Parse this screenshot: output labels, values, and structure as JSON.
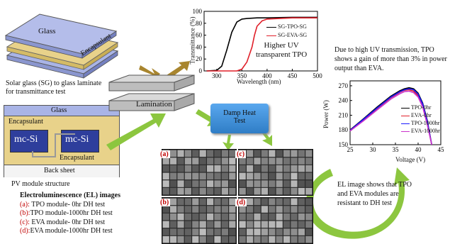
{
  "laminate": {
    "glass_top": "Glass",
    "encapsulant": "Encapsulant",
    "caption": "Solar glass (SG) to glass laminate for transmittance test"
  },
  "pv_module": {
    "glass": "Glass",
    "encapsulant_top": "Encapsulant",
    "cell_left": "mc-Si",
    "cell_right": "mc-Si",
    "encapsulant_bottom": "Encapsulant",
    "back_sheet": "Back sheet",
    "caption": "PV module structure"
  },
  "lamination": {
    "label": "Lamination"
  },
  "damp_heat": {
    "label_line1": "Damp Heat",
    "label_line2": "Test"
  },
  "transmittance_chart": {
    "ylabel": "Transmittance (%)",
    "xlabel": "Wavelength (nm)",
    "annotation_line1": "Higher UV",
    "annotation_line2": "transparent TPO",
    "y_ticks": [
      "0",
      "20",
      "40",
      "60",
      "80",
      "100"
    ],
    "x_ticks": [
      "300",
      "350",
      "400",
      "450",
      "500"
    ]
  },
  "power_chart": {
    "ylabel": "Power (W)",
    "xlabel": "Voltage (V)",
    "y_ticks": [
      "150",
      "180",
      "210",
      "240",
      "270"
    ],
    "x_ticks": [
      "25",
      "30",
      "35",
      "40",
      "45"
    ]
  },
  "uv_note": "Due to high UV transmission, TPO shows a gain of more than 3% in power output than EVA.",
  "el_note": "EL image shows that TPO and EVA modules are resistant to DH test",
  "el_legend": {
    "title": "Electroluminescence (EL) images",
    "items": [
      {
        "tag": "(a):",
        "text": " TPO module- 0hr DH test"
      },
      {
        "tag": "(b):",
        "text": "TPO module-1000hr DH test"
      },
      {
        "tag": "(c):",
        "text": " EVA module- 0hr DH test"
      },
      {
        "tag": "(d):",
        "text": "EVA module-1000hr DH test"
      }
    ]
  },
  "el_panels": [
    "(a)",
    "(c)",
    "(b)",
    "(d)"
  ],
  "chart_data": [
    {
      "type": "line",
      "xlabel": "Wavelength (nm)",
      "ylabel": "Transmittance (%)",
      "xlim": [
        275,
        500
      ],
      "ylim": [
        0,
        100
      ],
      "legend_position": "top-right",
      "series": [
        {
          "name": "SG-TPO-SG",
          "color": "#000000",
          "x": [
            280,
            300,
            310,
            320,
            330,
            340,
            350,
            360,
            380,
            400,
            450,
            500
          ],
          "y": [
            0,
            1,
            8,
            35,
            65,
            82,
            87,
            88,
            89,
            89,
            90,
            90
          ]
        },
        {
          "name": "SG-EVA-SG",
          "color": "#e0202a",
          "x": [
            280,
            340,
            350,
            360,
            370,
            375,
            380,
            390,
            400,
            450,
            500
          ],
          "y": [
            0,
            0,
            3,
            15,
            40,
            60,
            75,
            84,
            87,
            89,
            89
          ]
        }
      ]
    },
    {
      "type": "line",
      "xlabel": "Voltage (V)",
      "ylabel": "Power (W)",
      "xlim": [
        25,
        45
      ],
      "ylim": [
        150,
        280
      ],
      "legend_position": "center-right",
      "series": [
        {
          "name": "TPO-0hr",
          "color": "#000000",
          "x": [
            25,
            28,
            31,
            34,
            36,
            37,
            38,
            39,
            40,
            41,
            42,
            43
          ],
          "y": [
            180,
            203,
            227,
            249,
            260,
            264,
            266,
            264,
            255,
            235,
            200,
            150
          ]
        },
        {
          "name": "EVA-0hr",
          "color": "#e0202a",
          "x": [
            25,
            28,
            31,
            34,
            36,
            37,
            38,
            39,
            40,
            41,
            42,
            43
          ],
          "y": [
            179,
            201,
            224,
            246,
            257,
            261,
            262,
            259,
            250,
            230,
            195,
            150
          ]
        },
        {
          "name": "TPO-1000hr",
          "color": "#1a1aff",
          "x": [
            25,
            28,
            31,
            34,
            36,
            37,
            38,
            39,
            40,
            41,
            42,
            43
          ],
          "y": [
            179,
            202,
            225,
            247,
            258,
            262,
            264,
            262,
            253,
            233,
            198,
            150
          ]
        },
        {
          "name": "EVA-1000hr",
          "color": "#cc33cc",
          "x": [
            25,
            28,
            31,
            34,
            36,
            37,
            38,
            39,
            40,
            41,
            42,
            43
          ],
          "y": [
            178,
            199,
            221,
            243,
            254,
            258,
            259,
            256,
            247,
            227,
            192,
            150
          ]
        }
      ]
    }
  ],
  "colors": {
    "glass": "#a9b4e6",
    "encapsulant": "#e8d28a",
    "cell": "#2e3e9c",
    "arrow_green": "#8cc63f",
    "arrow_brown": "#a8852e",
    "damp_heat": "#3c8fd8"
  }
}
